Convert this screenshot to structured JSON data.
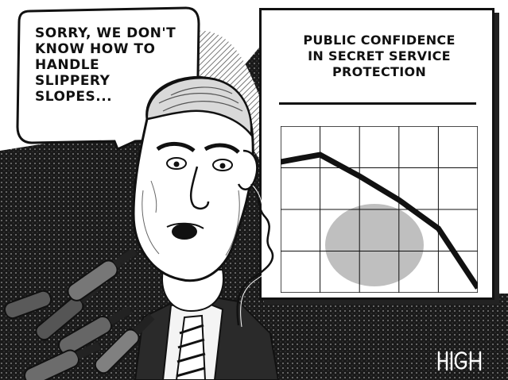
{
  "speech_bubble": {
    "lines": [
      "SORRY, WE DON'T",
      "KNOW HOW TO",
      "HANDLE",
      "SLIPPERY",
      "SLOPES..."
    ]
  },
  "chart_board": {
    "title_lines": [
      "PUBLIC CONFIDENCE",
      "IN SECRET SERVICE",
      "PROTECTION"
    ]
  },
  "chart_data": {
    "type": "line",
    "title": "PUBLIC CONFIDENCE IN SECRET SERVICE PROTECTION",
    "xlabel": "",
    "ylabel": "",
    "grid": true,
    "x": [
      0,
      1,
      2,
      3,
      4,
      5
    ],
    "values": [
      5.5,
      5.8,
      4.9,
      3.9,
      2.7,
      0.2
    ],
    "xlim": [
      0,
      5
    ],
    "ylim": [
      0,
      7
    ]
  },
  "signature": {
    "text": "HIGH",
    "style": "hand-lettered artist signature"
  },
  "colors": {
    "ink": "#111111",
    "paper": "#ffffff",
    "halftone": "#8a8a8a"
  }
}
